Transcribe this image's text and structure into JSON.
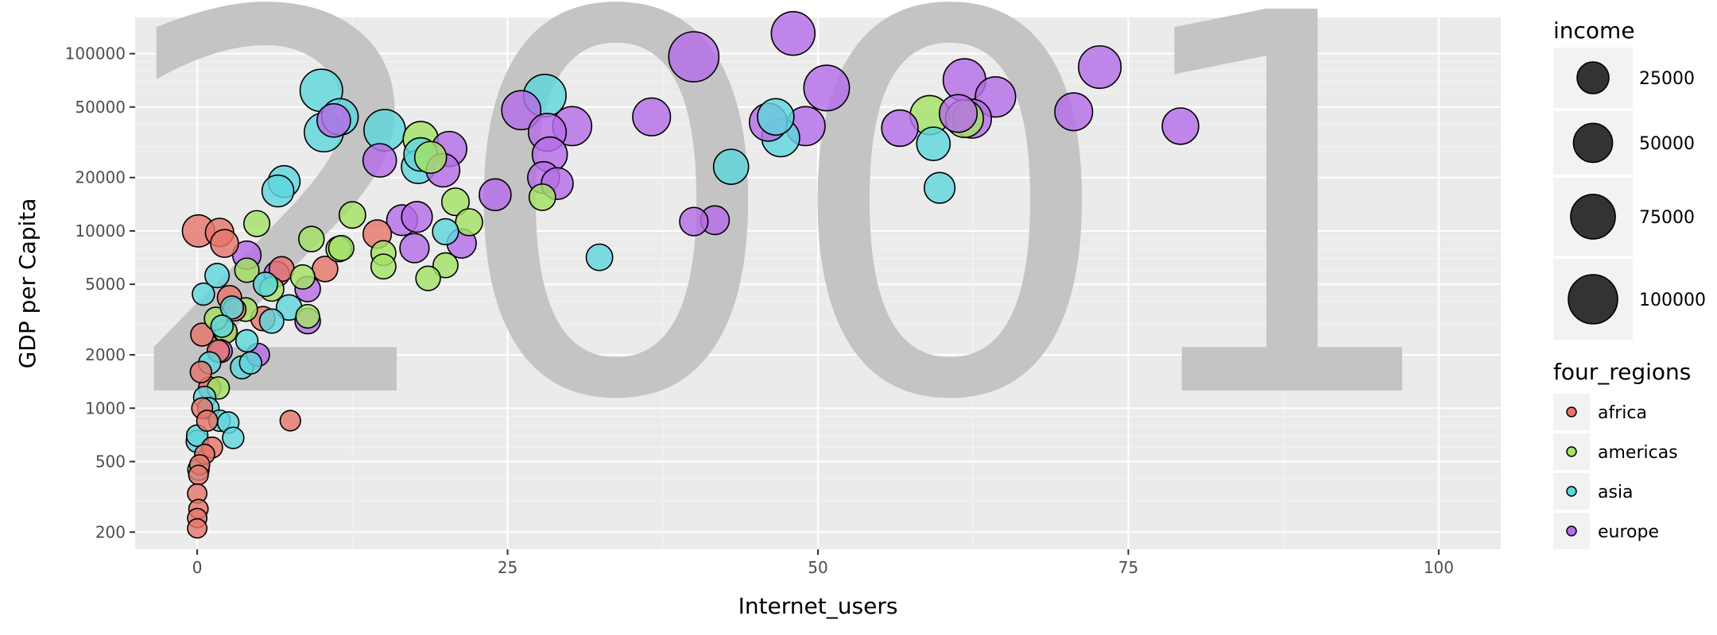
{
  "chart_data": {
    "type": "scatter",
    "watermark": "2001",
    "xlabel": "Internet_users",
    "ylabel": "GDP per Capita",
    "xlim": [
      -5,
      105
    ],
    "ylim": [
      160,
      160000
    ],
    "y_scale": "log",
    "grid": true,
    "x_ticks": [
      0,
      25,
      50,
      75,
      100
    ],
    "x_tick_labels": [
      "0",
      "25",
      "50",
      "75",
      "100"
    ],
    "y_ticks": [
      200,
      500,
      1000,
      2000,
      5000,
      10000,
      20000,
      50000,
      100000
    ],
    "y_tick_labels": [
      "200",
      "500",
      "1000",
      "2000",
      "5000",
      "10000",
      "20000",
      "50000",
      "100000"
    ],
    "size_legend": {
      "title": "income",
      "entries": [
        {
          "label": "25000",
          "value": 25000
        },
        {
          "label": "50000",
          "value": 50000
        },
        {
          "label": "75000",
          "value": 75000
        },
        {
          "label": "100000",
          "value": 100000
        }
      ]
    },
    "color_legend": {
      "title": "four_regions",
      "entries": [
        {
          "label": "africa",
          "color": "#e5766b"
        },
        {
          "label": "americas",
          "color": "#a3e266"
        },
        {
          "label": "asia",
          "color": "#5fd6dd"
        },
        {
          "label": "europe",
          "color": "#b56ee6"
        }
      ]
    },
    "series": [
      {
        "name": "africa",
        "color": "#e5766b",
        "points": [
          [
            0.1,
            10000,
            26000
          ],
          [
            1.8,
            9800,
            16000
          ],
          [
            2.2,
            8500,
            15000
          ],
          [
            0.4,
            2600,
            6000
          ],
          [
            1.0,
            1300,
            5000
          ],
          [
            0.3,
            1600,
            4000
          ],
          [
            0.4,
            1000,
            3500
          ],
          [
            0.8,
            850,
            3500
          ],
          [
            1.2,
            600,
            3500
          ],
          [
            0.6,
            550,
            2600
          ],
          [
            0.2,
            480,
            2600
          ],
          [
            0.1,
            420,
            2200
          ],
          [
            0.0,
            330,
            2000
          ],
          [
            0.1,
            270,
            2000
          ],
          [
            0.0,
            240,
            2000
          ],
          [
            0.0,
            210,
            2000
          ],
          [
            7.5,
            850,
            3000
          ],
          [
            14.5,
            9600,
            16000
          ],
          [
            10.3,
            6100,
            10000
          ],
          [
            2.6,
            4200,
            8000
          ],
          [
            3.0,
            3600,
            6000
          ],
          [
            5.3,
            3200,
            8000
          ],
          [
            1.7,
            2100,
            5000
          ],
          [
            6.8,
            6100,
            9000
          ],
          [
            2.2,
            2700,
            6000
          ]
        ]
      },
      {
        "name": "americas",
        "color": "#a3e266",
        "points": [
          [
            18.0,
            33000,
            35000
          ],
          [
            4.8,
            11000,
            11000
          ],
          [
            12.5,
            12300,
            12000
          ],
          [
            9.2,
            9000,
            10000
          ],
          [
            11.6,
            8000,
            9500
          ],
          [
            15.0,
            7500,
            9000
          ],
          [
            20.8,
            14600,
            14000
          ],
          [
            21.9,
            11200,
            13000
          ],
          [
            15.0,
            6300,
            9000
          ],
          [
            20.0,
            6400,
            9000
          ],
          [
            18.6,
            5400,
            8500
          ],
          [
            8.9,
            3300,
            7000
          ],
          [
            8.5,
            5500,
            8000
          ],
          [
            4.0,
            6000,
            8000
          ],
          [
            6.0,
            4700,
            8000
          ],
          [
            3.9,
            3600,
            7000
          ],
          [
            2.3,
            2700,
            6000
          ],
          [
            1.5,
            3200,
            6000
          ],
          [
            1.7,
            1300,
            5000
          ],
          [
            27.8,
            15500,
            12000
          ],
          [
            18.8,
            26000,
            25000
          ],
          [
            59.0,
            45000,
            50000
          ],
          [
            61.8,
            43000,
            45000
          ],
          [
            11.4,
            7900,
            10000
          ]
        ]
      },
      {
        "name": "asia",
        "color": "#5fd6dd",
        "points": [
          [
            10.0,
            62000,
            65000
          ],
          [
            10.2,
            36000,
            50000
          ],
          [
            11.5,
            44000,
            40000
          ],
          [
            15.1,
            37000,
            60000
          ],
          [
            17.8,
            23000,
            30000
          ],
          [
            18.0,
            27000,
            30000
          ],
          [
            7.0,
            19000,
            25000
          ],
          [
            6.5,
            16800,
            25000
          ],
          [
            28.0,
            58000,
            65000
          ],
          [
            46.6,
            44000,
            40000
          ],
          [
            47.0,
            33500,
            45000
          ],
          [
            43.0,
            23000,
            35000
          ],
          [
            59.3,
            31000,
            30000
          ],
          [
            59.8,
            17500,
            22000
          ],
          [
            32.4,
            7100,
            12000
          ],
          [
            20.0,
            9900,
            11000
          ],
          [
            1.6,
            5600,
            8000
          ],
          [
            0.5,
            4400,
            5000
          ],
          [
            2.0,
            2900,
            5000
          ],
          [
            2.8,
            3700,
            6000
          ],
          [
            4.0,
            2400,
            5000
          ],
          [
            1.0,
            1800,
            5000
          ],
          [
            0.6,
            1150,
            5000
          ],
          [
            0.9,
            1000,
            4000
          ],
          [
            0.0,
            700,
            4000
          ],
          [
            0.0,
            650,
            5000
          ],
          [
            0.1,
            450,
            4000
          ],
          [
            1.8,
            850,
            4000
          ],
          [
            2.5,
            830,
            4000
          ],
          [
            2.9,
            680,
            4000
          ],
          [
            3.6,
            1700,
            6000
          ],
          [
            4.3,
            1800,
            5000
          ],
          [
            6.0,
            3100,
            8000
          ],
          [
            7.4,
            3700,
            10000
          ],
          [
            5.5,
            5000,
            8000
          ]
        ]
      },
      {
        "name": "europe",
        "color": "#b56ee6",
        "points": [
          [
            40.0,
            96000,
            105000
          ],
          [
            48.0,
            130000,
            70000
          ],
          [
            50.7,
            64000,
            80000
          ],
          [
            36.6,
            44000,
            45000
          ],
          [
            26.1,
            48000,
            50000
          ],
          [
            28.2,
            36000,
            45000
          ],
          [
            28.4,
            27000,
            35000
          ],
          [
            30.2,
            39000,
            50000
          ],
          [
            46.0,
            41000,
            45000
          ],
          [
            49.0,
            39000,
            50000
          ],
          [
            56.6,
            38000,
            40000
          ],
          [
            61.8,
            71000,
            65000
          ],
          [
            62.4,
            43000,
            50000
          ],
          [
            64.3,
            57000,
            55000
          ],
          [
            70.6,
            47000,
            45000
          ],
          [
            72.7,
            84000,
            65000
          ],
          [
            79.2,
            39000,
            40000
          ],
          [
            11.0,
            42000,
            30000
          ],
          [
            14.7,
            25000,
            30000
          ],
          [
            20.3,
            29000,
            35000
          ],
          [
            19.8,
            22000,
            30000
          ],
          [
            24.0,
            16000,
            25000
          ],
          [
            27.9,
            20000,
            25000
          ],
          [
            29.0,
            18500,
            25000
          ],
          [
            16.5,
            11500,
            22000
          ],
          [
            17.7,
            12000,
            22000
          ],
          [
            17.5,
            8000,
            18000
          ],
          [
            21.3,
            8500,
            18000
          ],
          [
            40.0,
            11300,
            16000
          ],
          [
            41.7,
            11500,
            17000
          ],
          [
            4.0,
            7300,
            16000
          ],
          [
            8.9,
            4700,
            10000
          ],
          [
            8.9,
            3100,
            10000
          ],
          [
            6.4,
            5700,
            10000
          ],
          [
            1.9,
            2100,
            6000
          ],
          [
            4.9,
            2000,
            6000
          ],
          [
            61.3,
            46000,
            45000
          ]
        ]
      }
    ]
  }
}
